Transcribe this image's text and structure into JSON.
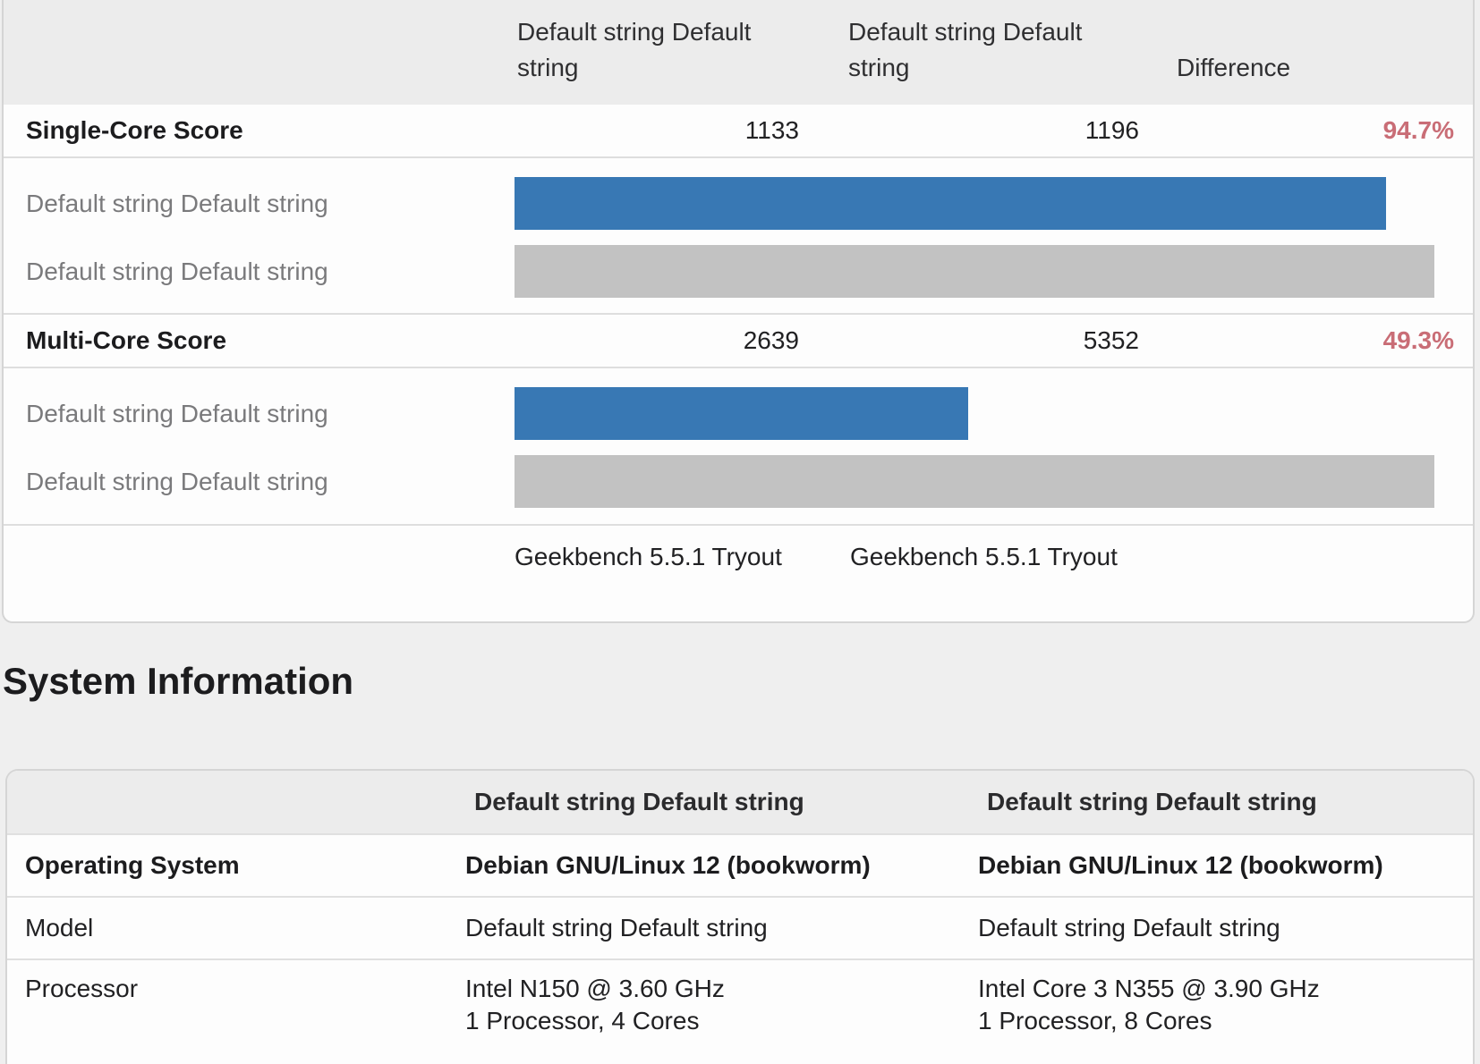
{
  "comparison_table": {
    "header": {
      "col_system1": "Default string Default string",
      "col_system2": "Default string Default string",
      "col_difference": "Difference"
    },
    "sections": [
      {
        "metric": "Single-Core Score",
        "system1_score": 1133,
        "system2_score": 1196,
        "difference": "94.7%",
        "bars": [
          {
            "label": "Default string Default string",
            "width_pct": 94.7,
            "color_key": "bar_blue"
          },
          {
            "label": "Default string Default string",
            "width_pct": 100,
            "color_key": "bar_gray"
          }
        ]
      },
      {
        "metric": "Multi-Core Score",
        "system1_score": 2639,
        "system2_score": 5352,
        "difference": "49.3%",
        "bars": [
          {
            "label": "Default string Default string",
            "width_pct": 49.3,
            "color_key": "bar_blue"
          },
          {
            "label": "Default string Default string",
            "width_pct": 100,
            "color_key": "bar_gray"
          }
        ]
      }
    ],
    "footer": {
      "system1_version": "Geekbench 5.5.1 Tryout",
      "system2_version": "Geekbench 5.5.1 Tryout"
    }
  },
  "system_information": {
    "title": "System Information",
    "header": {
      "col_system1": "Default string Default string",
      "col_system2": "Default string Default string"
    },
    "rows": [
      {
        "label": "Operating System",
        "system1": "Debian GNU/Linux 12 (bookworm)",
        "system2": "Debian GNU/Linux 12 (bookworm)"
      },
      {
        "label": "Model",
        "system1": "Default string Default string",
        "system2": "Default string Default string"
      },
      {
        "label": "Processor",
        "system1_line1": "Intel N150 @ 3.60 GHz",
        "system1_line2": "1 Processor, 4 Cores",
        "system2_line1": "Intel Core 3 N355 @ 3.90 GHz",
        "system2_line2": "1 Processor, 8 Cores"
      }
    ]
  },
  "chart_data": [
    {
      "type": "bar",
      "orientation": "horizontal",
      "title": "Single-Core Score",
      "categories": [
        "Default string Default string",
        "Default string Default string"
      ],
      "values": [
        1133,
        1196
      ],
      "bar_colors": [
        "#3878b4",
        "#c2c2c2"
      ],
      "annotation": "94.7%"
    },
    {
      "type": "bar",
      "orientation": "horizontal",
      "title": "Multi-Core Score",
      "categories": [
        "Default string Default string",
        "Default string Default string"
      ],
      "values": [
        2639,
        5352
      ],
      "bar_colors": [
        "#3878b4",
        "#c2c2c2"
      ],
      "annotation": "49.3%"
    }
  ],
  "colors": {
    "bar_blue": "#3878b4",
    "bar_gray": "#c2c2c2",
    "difference_red": "#c96d76",
    "header_bg": "#ececec",
    "page_bg": "#efefef"
  }
}
